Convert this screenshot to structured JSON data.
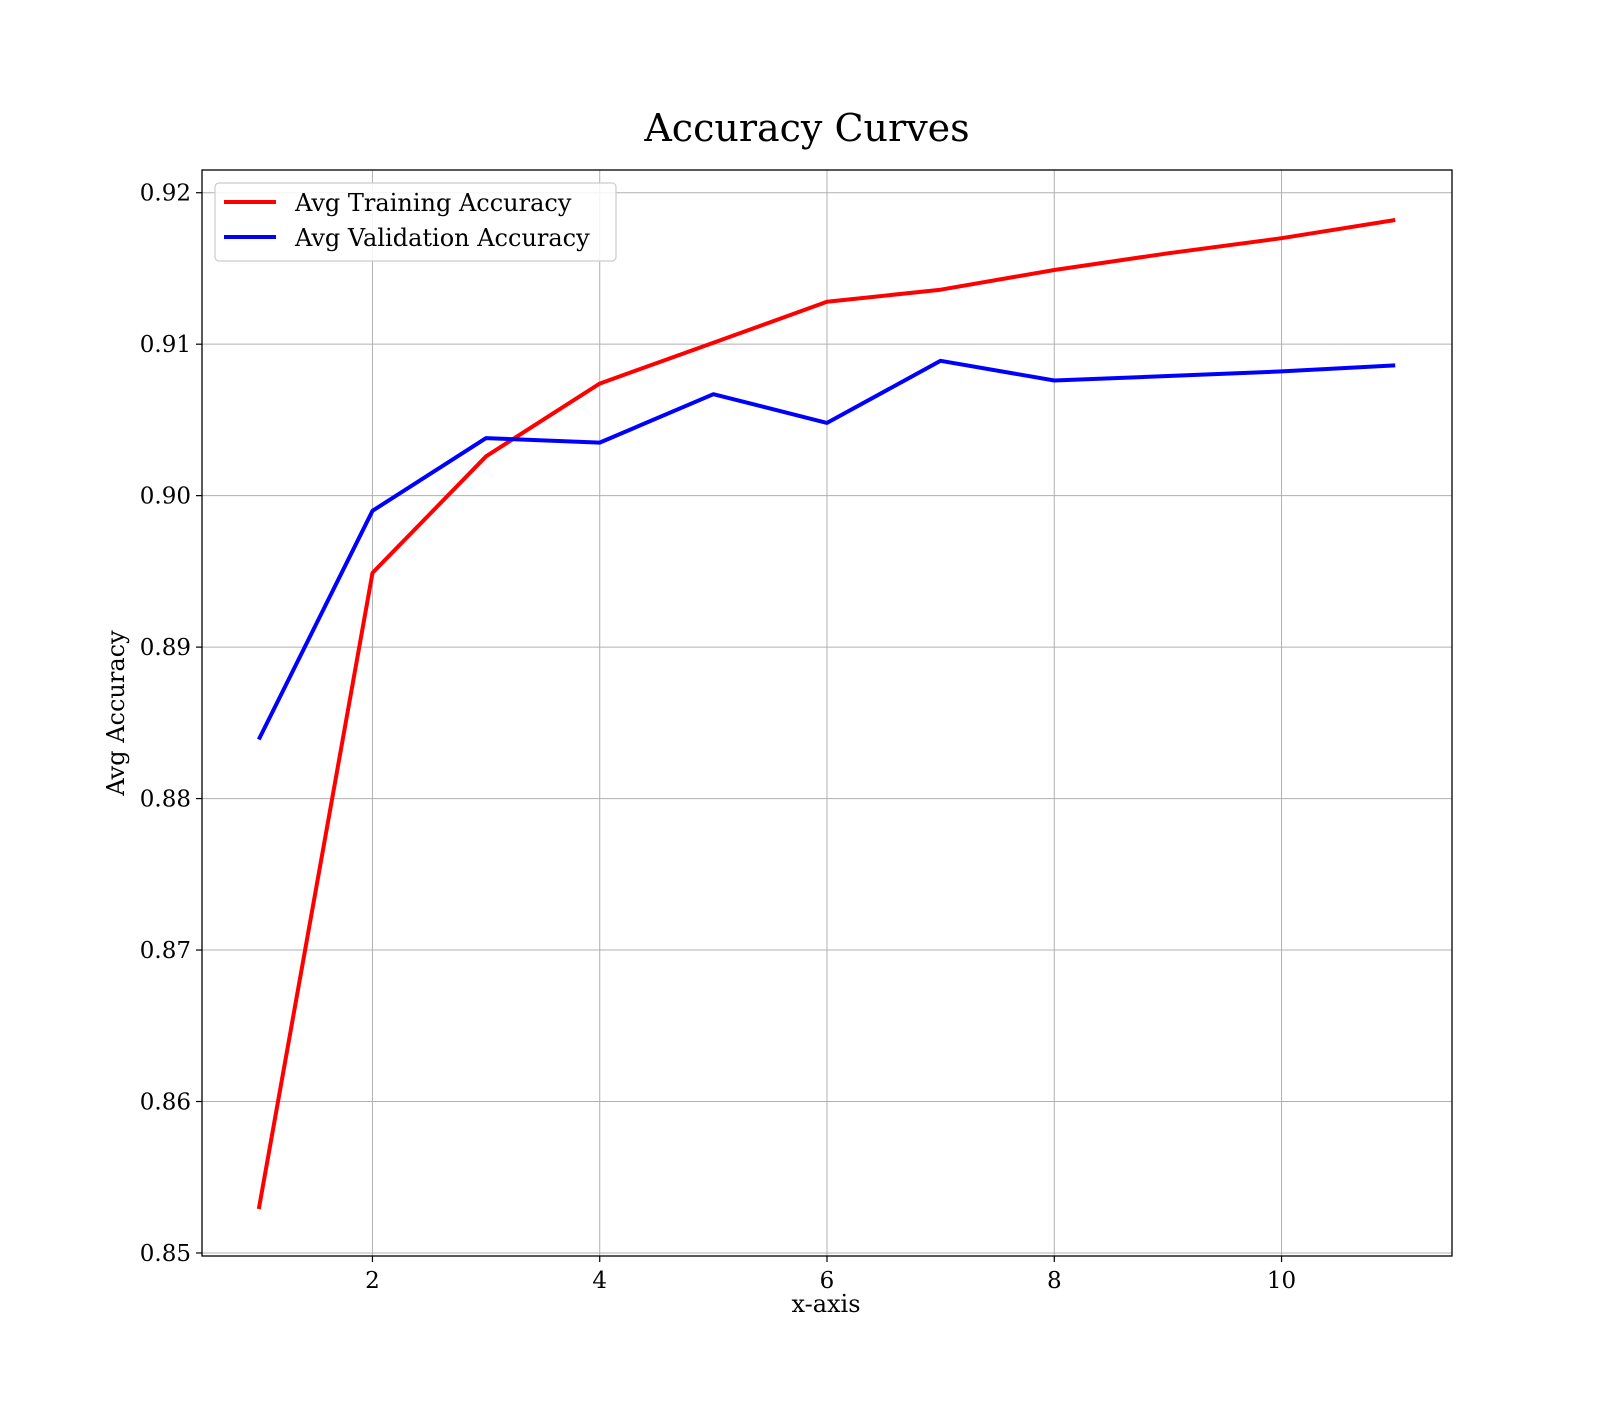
{
  "chart_data": {
    "type": "line",
    "title": "Accuracy Curves",
    "xlabel": "x-axis",
    "ylabel": "Avg Accuracy",
    "xlim": [
      0.5,
      11.5
    ],
    "ylim": [
      0.8498,
      0.9215
    ],
    "xticks": [
      2,
      4,
      6,
      8,
      10
    ],
    "xtick_labels": [
      "2",
      "4",
      "6",
      "8",
      "10"
    ],
    "yticks": [
      0.85,
      0.86,
      0.87,
      0.88,
      0.89,
      0.9,
      0.91,
      0.92
    ],
    "ytick_labels": [
      "0.85",
      "0.86",
      "0.87",
      "0.88",
      "0.89",
      "0.90",
      "0.91",
      "0.92"
    ],
    "grid": true,
    "legend_position": "top-left",
    "x": [
      1,
      2,
      3,
      4,
      5,
      6,
      7,
      8,
      9,
      10,
      11
    ],
    "series": [
      {
        "name": "Avg Training Accuracy",
        "color": "#ff0000",
        "values": [
          0.8529,
          0.8949,
          0.9026,
          0.9074,
          0.9101,
          0.9128,
          0.9136,
          0.9149,
          0.916,
          0.917,
          0.9182
        ]
      },
      {
        "name": "Avg Validation Accuracy",
        "color": "#0000ff",
        "values": [
          0.8839,
          0.899,
          0.9038,
          0.9035,
          0.9067,
          0.9048,
          0.9089,
          0.9076,
          0.9079,
          0.9082,
          0.9086
        ]
      }
    ]
  }
}
